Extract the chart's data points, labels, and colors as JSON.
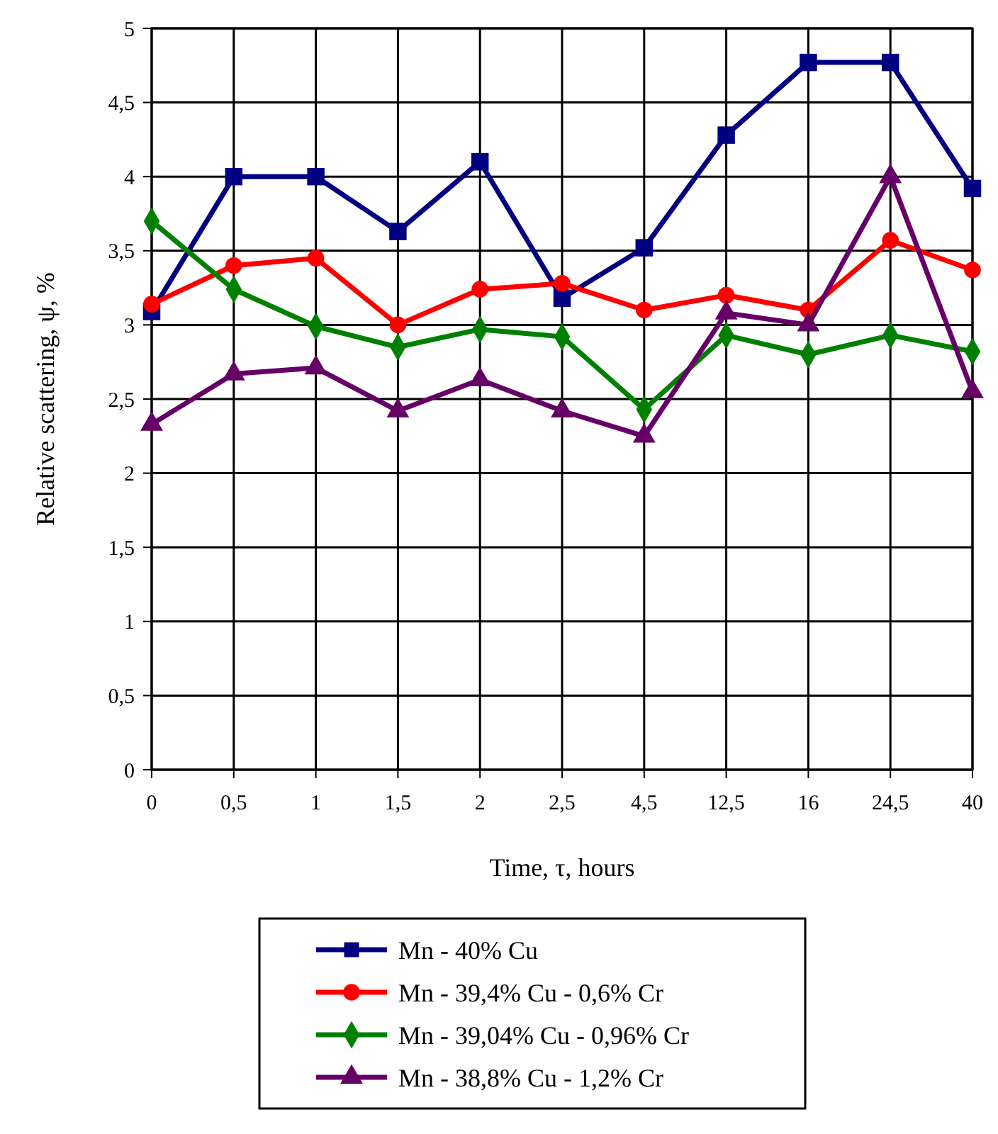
{
  "chart_data": {
    "type": "line",
    "xlabel": "Time, τ, hours",
    "ylabel": "Relative scattering, ψ, %",
    "categories": [
      "0",
      "0,5",
      "1",
      "1,5",
      "2",
      "2,5",
      "4,5",
      "12,5",
      "16",
      "24,5",
      "40"
    ],
    "ylim": [
      0,
      5
    ],
    "yticks": [
      0,
      {
        "value": 0.5,
        "label": "0,5"
      },
      1,
      {
        "value": 1.5,
        "label": "1,5"
      },
      2,
      {
        "value": 2.5,
        "label": "2,5"
      },
      3,
      {
        "value": 3.5,
        "label": "3,5"
      },
      4,
      {
        "value": 4.5,
        "label": "4,5"
      },
      5
    ],
    "grid": true,
    "legend": "bottom",
    "series": [
      {
        "name": "Mn - 40% Cu",
        "color": "#000080",
        "marker": "square",
        "values": [
          3.09,
          4.0,
          4.0,
          3.63,
          4.1,
          3.18,
          3.52,
          4.28,
          4.77,
          4.77,
          3.92
        ]
      },
      {
        "name": "Mn - 39,4% Cu - 0,6% Cr",
        "color": "#ff0000",
        "marker": "circle",
        "values": [
          3.14,
          3.4,
          3.45,
          3.0,
          3.24,
          3.28,
          3.1,
          3.2,
          3.1,
          3.57,
          3.37
        ]
      },
      {
        "name": "Mn - 39,04% Cu - 0,96% Cr",
        "color": "#008000",
        "marker": "diamond",
        "values": [
          3.7,
          3.24,
          2.99,
          2.85,
          2.97,
          2.92,
          2.43,
          2.93,
          2.8,
          2.93,
          2.82
        ]
      },
      {
        "name": "Mn - 38,8% Cu - 1,2% Cr",
        "color": "#660066",
        "marker": "triangle",
        "values": [
          2.33,
          2.67,
          2.71,
          2.42,
          2.63,
          2.42,
          2.25,
          3.08,
          3.0,
          4.0,
          2.55
        ]
      }
    ]
  }
}
